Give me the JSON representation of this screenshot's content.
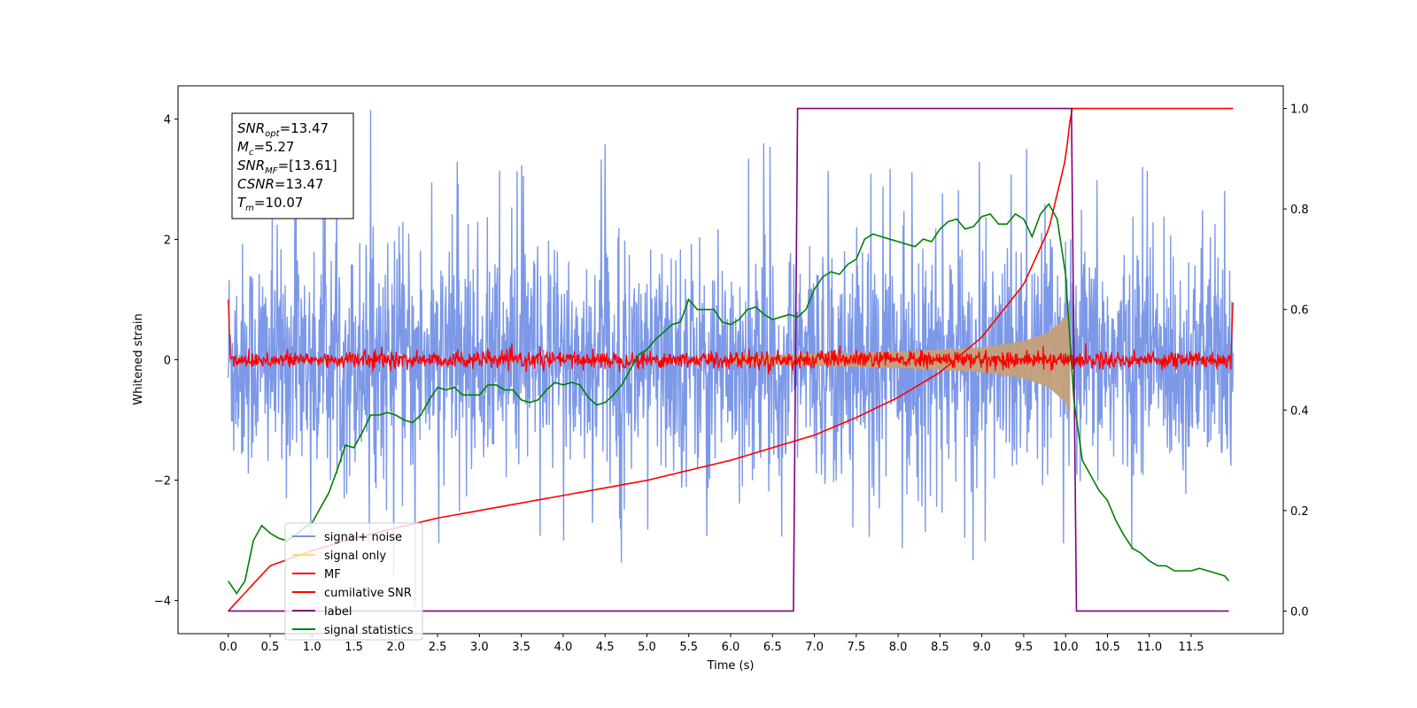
{
  "chart_data": {
    "type": "line",
    "xlabel": "Time (s)",
    "ylabel": "Whitened strain",
    "xlim": [
      -0.6,
      12.6
    ],
    "ylim": [
      -4.55,
      4.55
    ],
    "y2lim": [
      -0.045,
      1.045
    ],
    "x_ticks": [
      0.0,
      0.5,
      1.0,
      1.5,
      2.0,
      2.5,
      3.0,
      3.5,
      4.0,
      4.5,
      5.0,
      5.5,
      6.0,
      6.5,
      7.0,
      7.5,
      8.0,
      8.5,
      9.0,
      9.5,
      10.0,
      10.5,
      11.0,
      11.5
    ],
    "x_tick_labels": [
      "0.0",
      "0.5",
      "1.0",
      "1.5",
      "2.0",
      "2.5",
      "3.0",
      "3.5",
      "4.0",
      "4.5",
      "5.0",
      "5.5",
      "6.0",
      "6.5",
      "7.0",
      "7.5",
      "8.0",
      "8.5",
      "9.0",
      "9.5",
      "10.0",
      "10.5",
      "11.0",
      "11.5"
    ],
    "y_ticks": [
      -4,
      -2,
      0,
      2,
      4
    ],
    "y_tick_labels": [
      "−4",
      "−2",
      "0",
      "2",
      "4"
    ],
    "y2_ticks": [
      0.0,
      0.2,
      0.4,
      0.6,
      0.8,
      1.0
    ],
    "y2_tick_labels": [
      "0.0",
      "0.2",
      "0.4",
      "0.6",
      "0.8",
      "1.0"
    ],
    "annotation": {
      "lines": [
        {
          "main": "SNR",
          "sub": "opt",
          "value": "=13.47"
        },
        {
          "main": "M",
          "sub": "c",
          "value": "=5.27"
        },
        {
          "main": "SNR",
          "sub": "MF",
          "value": "=[13.61]"
        },
        {
          "main": "CSNR",
          "sub": "",
          "value": "=13.47"
        },
        {
          "main": "T",
          "sub": "m",
          "value": "=10.07"
        }
      ]
    },
    "legend": {
      "placement": "lower left",
      "entries": [
        {
          "label": "signal+ noise",
          "color": "#7592e6"
        },
        {
          "label": "signal only",
          "color": "#ffd580"
        },
        {
          "label": "MF",
          "color": "#ff0000"
        },
        {
          "label": "cumilative SNR",
          "color": "#ff0000"
        },
        {
          "label": "label",
          "color": "#800080"
        },
        {
          "label": "signal statistics",
          "color": "#008000"
        }
      ]
    },
    "series": [
      {
        "name": "signal+ noise",
        "axis": "left",
        "color": "#7592e6",
        "x_range": [
          0.0,
          12.0
        ],
        "envelope_upper": 2.5,
        "envelope_lower": -2.5,
        "peak_max": 4.15,
        "peak_min": -4.1
      },
      {
        "name": "signal only",
        "axis": "left",
        "color": "#c4a07a",
        "x": [
          6.0,
          7.0,
          8.0,
          8.5,
          9.0,
          9.5,
          9.8,
          10.0,
          10.05
        ],
        "amplitude": [
          0.06,
          0.09,
          0.13,
          0.16,
          0.2,
          0.3,
          0.45,
          0.7,
          0.85
        ]
      },
      {
        "name": "MF",
        "axis": "left",
        "color": "#ff0000",
        "x_range": [
          0.0,
          12.0
        ],
        "noise_amplitude": 0.12,
        "edge_start": 1.0,
        "edge_end": 0.95
      },
      {
        "name": "cumilative SNR",
        "axis": "right",
        "color": "#ff0000",
        "x": [
          0.0,
          0.5,
          1.0,
          1.5,
          2.0,
          2.5,
          3.0,
          3.5,
          4.0,
          4.5,
          5.0,
          5.5,
          6.0,
          6.5,
          7.0,
          7.5,
          8.0,
          8.5,
          9.0,
          9.5,
          9.8,
          10.0,
          10.07,
          10.1,
          12.0
        ],
        "y": [
          0.0,
          0.09,
          0.12,
          0.145,
          0.165,
          0.185,
          0.2,
          0.215,
          0.23,
          0.245,
          0.26,
          0.28,
          0.3,
          0.325,
          0.35,
          0.385,
          0.425,
          0.475,
          0.545,
          0.65,
          0.76,
          0.9,
          1.0,
          1.0,
          1.0
        ]
      },
      {
        "name": "label",
        "axis": "right",
        "color": "#800080",
        "x": [
          0.0,
          6.75,
          6.8,
          10.07,
          10.13,
          11.95
        ],
        "y": [
          0.0,
          0.0,
          1.0,
          1.0,
          0.0,
          0.0
        ]
      },
      {
        "name": "signal statistics",
        "axis": "right",
        "color": "#008000",
        "x": [
          0.0,
          0.1,
          0.2,
          0.3,
          0.4,
          0.5,
          0.6,
          0.7,
          0.8,
          0.9,
          1.0,
          1.1,
          1.2,
          1.3,
          1.4,
          1.5,
          1.6,
          1.7,
          1.8,
          1.9,
          2.0,
          2.1,
          2.2,
          2.3,
          2.4,
          2.5,
          2.6,
          2.7,
          2.8,
          2.9,
          3.0,
          3.1,
          3.2,
          3.3,
          3.4,
          3.5,
          3.6,
          3.7,
          3.8,
          3.9,
          4.0,
          4.1,
          4.2,
          4.3,
          4.4,
          4.5,
          4.6,
          4.7,
          4.8,
          4.9,
          5.0,
          5.1,
          5.2,
          5.3,
          5.4,
          5.5,
          5.6,
          5.7,
          5.8,
          5.9,
          6.0,
          6.1,
          6.2,
          6.3,
          6.4,
          6.5,
          6.6,
          6.7,
          6.8,
          6.9,
          7.0,
          7.1,
          7.2,
          7.3,
          7.4,
          7.5,
          7.6,
          7.7,
          7.8,
          7.9,
          8.0,
          8.1,
          8.2,
          8.3,
          8.4,
          8.5,
          8.6,
          8.7,
          8.8,
          8.9,
          9.0,
          9.1,
          9.2,
          9.3,
          9.4,
          9.5,
          9.6,
          9.7,
          9.8,
          9.9,
          10.0,
          10.1,
          10.2,
          10.3,
          10.4,
          10.5,
          10.6,
          10.7,
          10.8,
          10.9,
          11.0,
          11.1,
          11.2,
          11.3,
          11.4,
          11.5,
          11.6,
          11.7,
          11.8,
          11.9,
          11.95
        ],
        "y": [
          0.06,
          0.035,
          0.06,
          0.14,
          0.17,
          0.155,
          0.145,
          0.14,
          0.15,
          0.165,
          0.175,
          0.205,
          0.235,
          0.28,
          0.33,
          0.325,
          0.355,
          0.39,
          0.39,
          0.395,
          0.39,
          0.38,
          0.375,
          0.39,
          0.42,
          0.445,
          0.44,
          0.445,
          0.43,
          0.43,
          0.43,
          0.45,
          0.45,
          0.44,
          0.44,
          0.42,
          0.415,
          0.42,
          0.44,
          0.455,
          0.45,
          0.455,
          0.45,
          0.425,
          0.41,
          0.415,
          0.43,
          0.45,
          0.48,
          0.51,
          0.52,
          0.54,
          0.555,
          0.57,
          0.575,
          0.62,
          0.6,
          0.6,
          0.6,
          0.575,
          0.57,
          0.58,
          0.6,
          0.605,
          0.59,
          0.58,
          0.585,
          0.59,
          0.585,
          0.6,
          0.64,
          0.665,
          0.675,
          0.67,
          0.69,
          0.7,
          0.74,
          0.75,
          0.745,
          0.74,
          0.735,
          0.73,
          0.725,
          0.74,
          0.735,
          0.76,
          0.775,
          0.78,
          0.76,
          0.765,
          0.785,
          0.79,
          0.77,
          0.77,
          0.79,
          0.78,
          0.745,
          0.79,
          0.81,
          0.78,
          0.67,
          0.42,
          0.3,
          0.27,
          0.24,
          0.22,
          0.18,
          0.15,
          0.125,
          0.115,
          0.1,
          0.09,
          0.09,
          0.08,
          0.08,
          0.08,
          0.085,
          0.08,
          0.075,
          0.07,
          0.06
        ]
      }
    ]
  }
}
